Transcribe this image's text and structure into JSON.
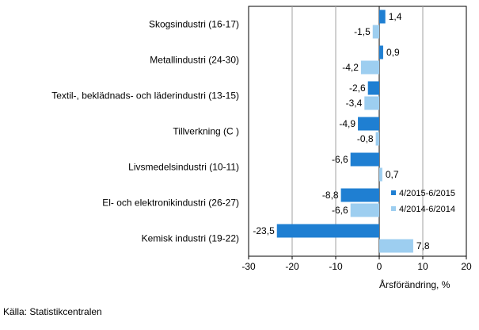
{
  "chart_data": {
    "type": "bar",
    "orientation": "horizontal",
    "categories": [
      "Skogsindustri (16-17)",
      "Metallindustri (24-30)",
      "Textil-, beklädnads- och läderindustri (13-15)",
      "Tillverkning (C )",
      "Livsmedelsindustri (10-11)",
      "El- och elektronikindustri (26-27)",
      "Kemisk industri (19-22)"
    ],
    "series": [
      {
        "name": "4/2015-6/2015",
        "color": "#1f7fd2",
        "values": [
          1.4,
          0.9,
          -2.6,
          -4.9,
          -6.6,
          -8.8,
          -23.5
        ],
        "labels": [
          "1,4",
          "0,9",
          "-2,6",
          "-4,9",
          "-6,6",
          "-8,8",
          "-23,5"
        ]
      },
      {
        "name": "4/2014-6/2014",
        "color": "#9dcef0",
        "values": [
          -1.5,
          -4.2,
          -3.4,
          -0.8,
          0.7,
          -6.6,
          7.8
        ],
        "labels": [
          "-1,5",
          "-4,2",
          "-3,4",
          "-0,8",
          "0,7",
          "-6,6",
          "7,8"
        ]
      }
    ],
    "xlim": [
      -30,
      20
    ],
    "xticks": [
      -30,
      -20,
      -10,
      0,
      10,
      20
    ],
    "xlabel": "Årsförändring, %",
    "ylabel": "",
    "title": "",
    "grid": "vertical",
    "legend_position": "right"
  },
  "source": "Källa: Statistikcentralen"
}
